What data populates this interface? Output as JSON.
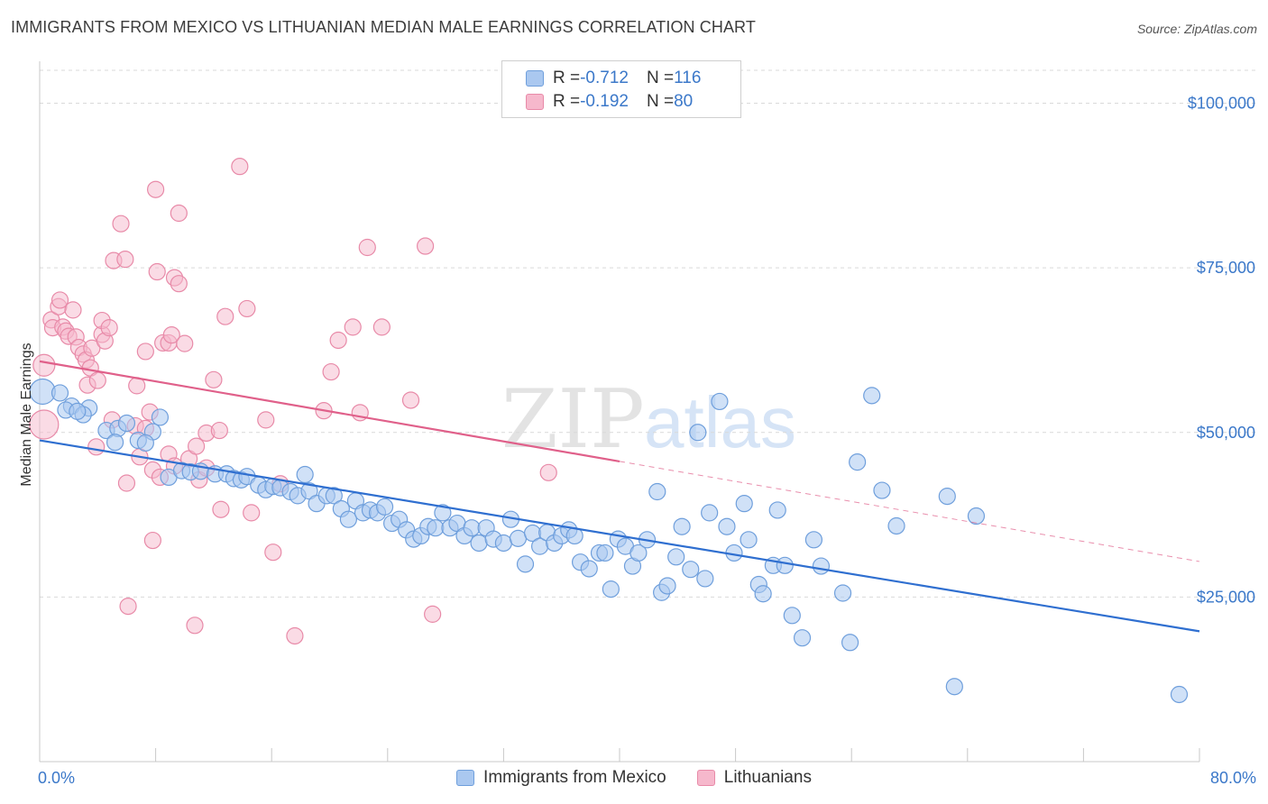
{
  "header": {
    "title": "IMMIGRANTS FROM MEXICO VS LITHUANIAN MEDIAN MALE EARNINGS CORRELATION CHART",
    "source": "Source: ZipAtlas.com"
  },
  "watermark": {
    "zip": "ZIP",
    "atlas": "atlas"
  },
  "legend_top": {
    "rows": [
      {
        "r_label": "R = ",
        "r_value": "-0.712",
        "n_label": "N = ",
        "n_value": "116"
      },
      {
        "r_label": "R = ",
        "r_value": "-0.192",
        "n_label": "N = ",
        "n_value": "80"
      }
    ]
  },
  "colors": {
    "series_blue_fill": "#aac8f0",
    "series_blue_stroke": "#6f9fdc",
    "series_blue_line": "#2f6fd0",
    "series_pink_fill": "#f6b8cc",
    "series_pink_stroke": "#e88aa8",
    "series_pink_line": "#e0608a",
    "axis_text": "#3b78c9",
    "grid": "#d9d9d9"
  },
  "chart_data": {
    "type": "scatter",
    "title": "IMMIGRANTS FROM MEXICO VS LITHUANIAN MEDIAN MALE EARNINGS CORRELATION CHART",
    "xlabel": "",
    "ylabel": "Median Male Earnings",
    "xlim": [
      0,
      80
    ],
    "ylim": [
      0,
      105000
    ],
    "x_tick_labels": [
      "0.0%",
      "80.0%"
    ],
    "y_ticks": [
      25000,
      50000,
      75000,
      100000
    ],
    "y_tick_labels": [
      "$25,000",
      "$50,000",
      "$75,000",
      "$100,000"
    ],
    "grid": "horizontal dashed",
    "legend_position": "bottom-center",
    "series": [
      {
        "name": "Immigrants from Mexico",
        "r": -0.712,
        "n": 116,
        "trend": {
          "x": [
            0,
            80
          ],
          "y": [
            48800,
            19800
          ],
          "style": "solid"
        },
        "points": [
          [
            0.2,
            56200
          ],
          [
            1.4,
            56000
          ],
          [
            2.2,
            54000
          ],
          [
            1.8,
            53400
          ],
          [
            3.4,
            53700
          ],
          [
            3.0,
            52700
          ],
          [
            2.6,
            53200
          ],
          [
            8.3,
            52300
          ],
          [
            4.6,
            50300
          ],
          [
            5.4,
            50600
          ],
          [
            6.0,
            51400
          ],
          [
            7.8,
            50100
          ],
          [
            5.2,
            48500
          ],
          [
            6.8,
            48800
          ],
          [
            7.3,
            48400
          ],
          [
            8.9,
            43200
          ],
          [
            9.8,
            44200
          ],
          [
            10.4,
            44000
          ],
          [
            11.1,
            44100
          ],
          [
            12.1,
            43700
          ],
          [
            12.9,
            43700
          ],
          [
            13.4,
            43000
          ],
          [
            13.9,
            42800
          ],
          [
            14.3,
            43300
          ],
          [
            15.1,
            42000
          ],
          [
            15.6,
            41300
          ],
          [
            16.1,
            41800
          ],
          [
            16.6,
            41600
          ],
          [
            17.3,
            41000
          ],
          [
            17.8,
            40400
          ],
          [
            18.6,
            41100
          ],
          [
            18.3,
            43600
          ],
          [
            19.1,
            39200
          ],
          [
            19.8,
            40400
          ],
          [
            20.3,
            40400
          ],
          [
            20.8,
            38400
          ],
          [
            21.3,
            36800
          ],
          [
            21.8,
            39600
          ],
          [
            22.3,
            37800
          ],
          [
            22.8,
            38200
          ],
          [
            23.3,
            37800
          ],
          [
            23.8,
            38700
          ],
          [
            24.3,
            36200
          ],
          [
            24.8,
            36800
          ],
          [
            25.3,
            35200
          ],
          [
            25.8,
            33800
          ],
          [
            26.3,
            34300
          ],
          [
            26.8,
            35700
          ],
          [
            27.3,
            35500
          ],
          [
            27.8,
            37800
          ],
          [
            28.3,
            35500
          ],
          [
            28.8,
            36200
          ],
          [
            29.3,
            34300
          ],
          [
            29.8,
            35500
          ],
          [
            30.3,
            33200
          ],
          [
            30.8,
            35500
          ],
          [
            31.3,
            33800
          ],
          [
            32.0,
            33200
          ],
          [
            32.5,
            36800
          ],
          [
            33.0,
            33900
          ],
          [
            33.5,
            30000
          ],
          [
            34.0,
            34700
          ],
          [
            34.5,
            32700
          ],
          [
            35.0,
            34800
          ],
          [
            35.5,
            33200
          ],
          [
            36.0,
            34300
          ],
          [
            36.5,
            35200
          ],
          [
            36.9,
            34300
          ],
          [
            37.3,
            30300
          ],
          [
            37.9,
            29300
          ],
          [
            38.6,
            31700
          ],
          [
            39.0,
            31700
          ],
          [
            39.4,
            26200
          ],
          [
            39.9,
            33800
          ],
          [
            40.4,
            32700
          ],
          [
            40.9,
            29700
          ],
          [
            41.3,
            31700
          ],
          [
            41.9,
            33700
          ],
          [
            42.6,
            41000
          ],
          [
            42.9,
            25700
          ],
          [
            43.3,
            26700
          ],
          [
            43.9,
            31100
          ],
          [
            44.3,
            35700
          ],
          [
            44.9,
            29200
          ],
          [
            45.4,
            50000
          ],
          [
            45.9,
            27800
          ],
          [
            46.2,
            37800
          ],
          [
            46.9,
            54700
          ],
          [
            47.4,
            35700
          ],
          [
            47.9,
            31700
          ],
          [
            48.6,
            39200
          ],
          [
            48.9,
            33700
          ],
          [
            49.6,
            26900
          ],
          [
            49.9,
            25500
          ],
          [
            50.6,
            29800
          ],
          [
            50.9,
            38200
          ],
          [
            51.4,
            29800
          ],
          [
            51.9,
            22200
          ],
          [
            52.6,
            18800
          ],
          [
            53.4,
            33700
          ],
          [
            53.9,
            29700
          ],
          [
            55.4,
            25600
          ],
          [
            55.9,
            18100
          ],
          [
            56.4,
            45500
          ],
          [
            57.4,
            55600
          ],
          [
            58.1,
            41200
          ],
          [
            59.1,
            35800
          ],
          [
            62.6,
            40300
          ],
          [
            63.1,
            11400
          ],
          [
            64.6,
            37300
          ],
          [
            78.6,
            10200
          ]
        ]
      },
      {
        "name": "Lithuanians",
        "r": -0.192,
        "n": 80,
        "trend": {
          "x": [
            0,
            40
          ],
          "y": [
            60800,
            45600
          ],
          "style": "solid",
          "extended_x": [
            40,
            80
          ],
          "extended_y": [
            45600,
            30400
          ],
          "extended_style": "dashed"
        },
        "points": [
          [
            0.3,
            51200
          ],
          [
            0.3,
            60200
          ],
          [
            0.8,
            67100
          ],
          [
            0.9,
            65900
          ],
          [
            1.3,
            69100
          ],
          [
            1.4,
            70100
          ],
          [
            1.6,
            66000
          ],
          [
            1.8,
            65400
          ],
          [
            2.0,
            64600
          ],
          [
            2.3,
            68600
          ],
          [
            2.5,
            64500
          ],
          [
            2.7,
            62900
          ],
          [
            3.0,
            61900
          ],
          [
            3.2,
            61000
          ],
          [
            3.3,
            57200
          ],
          [
            3.5,
            59800
          ],
          [
            3.6,
            62800
          ],
          [
            3.9,
            47800
          ],
          [
            4.0,
            57900
          ],
          [
            4.3,
            64900
          ],
          [
            4.5,
            63900
          ],
          [
            4.3,
            67000
          ],
          [
            4.8,
            65900
          ],
          [
            5.0,
            51900
          ],
          [
            5.1,
            76100
          ],
          [
            5.6,
            81700
          ],
          [
            5.9,
            76300
          ],
          [
            6.0,
            42300
          ],
          [
            6.1,
            23600
          ],
          [
            6.6,
            51000
          ],
          [
            6.7,
            57100
          ],
          [
            6.9,
            46300
          ],
          [
            7.3,
            50600
          ],
          [
            7.3,
            62300
          ],
          [
            7.6,
            53100
          ],
          [
            7.8,
            44300
          ],
          [
            7.8,
            33600
          ],
          [
            8.0,
            86900
          ],
          [
            8.1,
            74400
          ],
          [
            8.3,
            43200
          ],
          [
            8.5,
            63600
          ],
          [
            8.9,
            46700
          ],
          [
            8.9,
            63600
          ],
          [
            9.1,
            64800
          ],
          [
            9.3,
            44900
          ],
          [
            9.3,
            73500
          ],
          [
            9.6,
            83300
          ],
          [
            9.6,
            72600
          ],
          [
            10.0,
            63500
          ],
          [
            10.3,
            46000
          ],
          [
            10.7,
            20700
          ],
          [
            10.8,
            47900
          ],
          [
            11.0,
            42800
          ],
          [
            11.5,
            44600
          ],
          [
            11.5,
            49900
          ],
          [
            12.0,
            58000
          ],
          [
            12.4,
            50300
          ],
          [
            12.5,
            38300
          ],
          [
            12.8,
            67600
          ],
          [
            13.8,
            90400
          ],
          [
            14.3,
            68800
          ],
          [
            14.6,
            37800
          ],
          [
            15.6,
            51900
          ],
          [
            16.1,
            31800
          ],
          [
            16.6,
            42200
          ],
          [
            17.6,
            19100
          ],
          [
            19.6,
            53300
          ],
          [
            20.1,
            59200
          ],
          [
            20.6,
            64000
          ],
          [
            21.6,
            66000
          ],
          [
            22.1,
            53000
          ],
          [
            22.6,
            78100
          ],
          [
            23.6,
            66000
          ],
          [
            25.6,
            54900
          ],
          [
            26.6,
            78300
          ],
          [
            27.1,
            22400
          ],
          [
            35.1,
            43900
          ]
        ]
      }
    ]
  }
}
